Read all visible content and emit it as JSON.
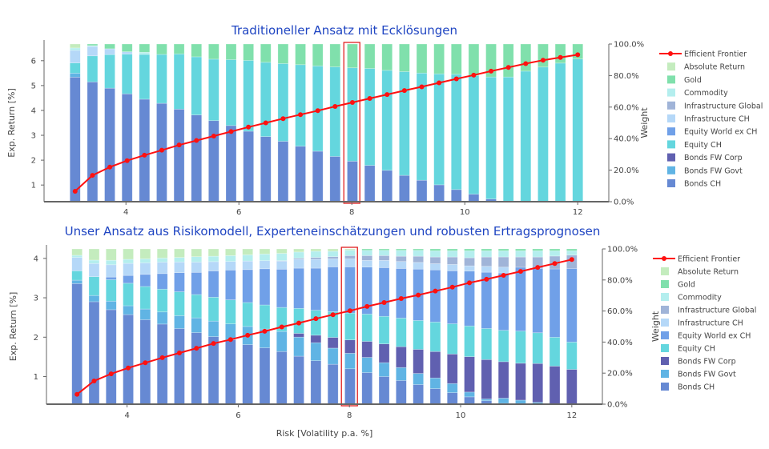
{
  "series_names": [
    "Bonds CH",
    "Bonds FW Govt",
    "Bonds FW Corp",
    "Equity CH",
    "Equity World ex CH",
    "Infrastructure CH",
    "Infrastructure Global",
    "Commodity",
    "Gold",
    "Absolute Return"
  ],
  "colors": {
    "Bonds CH": "#6689d3",
    "Bonds FW Govt": "#60b4e4",
    "Bonds FW Corp": "#6060b0",
    "Equity CH": "#64d6de",
    "Equity World ex CH": "#70a0e8",
    "Infrastructure CH": "#b5d8f8",
    "Infrastructure Global": "#a0b4d8",
    "Commodity": "#b4eeee",
    "Gold": "#80e0ac",
    "Absolute Return": "#c4ecbe",
    "frontier": "#ff1010",
    "highlight": "#e02020",
    "title": "#1f45c2"
  },
  "legend_line_label": "Efficient Frontier",
  "chart_data": [
    {
      "type": "bar",
      "stacked": true,
      "title": "Traditioneller Ansatz mit Ecklösungen",
      "xlabel": "",
      "ylabel_left": "Exp. Return [%]",
      "ylabel_right": "Weight",
      "xlim": [
        2.55,
        12.55
      ],
      "ylim_left": [
        0.33,
        6.67
      ],
      "ylim_right": [
        0,
        100
      ],
      "xticks": [
        4,
        6,
        8,
        10,
        12
      ],
      "yticks_left": [
        1,
        2,
        3,
        4,
        5,
        6
      ],
      "yticks_right": [
        "0.0%",
        "20.0%",
        "40.0%",
        "60.0%",
        "80.0%",
        "100.0%"
      ],
      "highlight_x": 8,
      "legend": "right",
      "x_start": 3.1,
      "x_end": 12.0,
      "n": 30,
      "frontier_return": [
        0.75,
        1.39,
        1.72,
        1.98,
        2.2,
        2.4,
        2.61,
        2.79,
        2.97,
        3.15,
        3.33,
        3.5,
        3.67,
        3.83,
        3.99,
        4.16,
        4.32,
        4.48,
        4.64,
        4.8,
        4.95,
        5.11,
        5.27,
        5.42,
        5.58,
        5.73,
        5.88,
        6.02,
        6.13,
        6.24
      ],
      "series": [
        {
          "name": "Bonds CH",
          "values": [
            79,
            76,
            72,
            68.4,
            65,
            62.4,
            58.7,
            55,
            51.4,
            48.3,
            44.7,
            41.3,
            38.3,
            35.2,
            32,
            28.7,
            25.7,
            23,
            19.9,
            16.7,
            13.6,
            10.7,
            7.7,
            4.8,
            1.7,
            0,
            0,
            0,
            0,
            0
          ]
        },
        {
          "name": "Bonds FW Govt",
          "values": [
            2.5,
            0,
            0,
            0,
            0,
            0,
            0,
            0,
            0,
            0,
            0,
            0,
            0,
            0,
            0,
            0,
            0,
            0,
            0,
            0,
            0,
            0,
            0,
            0,
            0,
            0,
            0,
            0,
            0,
            0
          ]
        },
        {
          "name": "Bonds FW Corp",
          "values": [
            0,
            0,
            0,
            0,
            0,
            0,
            0,
            0,
            0,
            0,
            0,
            0,
            0,
            0,
            0,
            0,
            0,
            0,
            0,
            0,
            0,
            0,
            0,
            0,
            0,
            0,
            0,
            0,
            0,
            0
          ]
        },
        {
          "name": "Equity CH",
          "values": [
            6.5,
            16.5,
            21.3,
            25.2,
            28.4,
            31,
            35,
            36.9,
            39,
            41.8,
            44.9,
            47.1,
            49.3,
            51.7,
            54.1,
            56.8,
            59.2,
            61.5,
            63.4,
            65.8,
            68,
            70.4,
            73.1,
            75.2,
            77.4,
            79.1,
            82.8,
            85.4,
            87.9,
            90.5
          ]
        },
        {
          "name": "Equity World ex CH",
          "values": [
            0,
            0,
            0,
            0,
            0,
            0,
            0,
            0,
            0,
            0,
            0,
            0,
            0,
            0,
            0,
            0,
            0,
            0,
            0,
            0,
            0,
            0,
            0,
            0,
            0,
            0,
            0,
            0,
            0,
            0
          ]
        },
        {
          "name": "Infrastructure CH",
          "values": [
            8,
            6,
            3.7,
            1.5,
            0,
            0,
            0,
            0,
            0,
            0,
            0,
            0,
            0,
            0,
            0,
            0,
            0,
            0,
            0,
            0,
            0,
            0,
            0,
            0,
            0,
            0,
            0,
            0,
            0,
            0
          ]
        },
        {
          "name": "Infrastructure Global",
          "values": [
            0,
            0,
            0,
            0,
            0,
            0,
            0,
            0,
            0,
            0,
            0,
            0,
            0,
            0,
            0,
            0,
            0,
            0,
            0,
            0,
            0,
            0,
            0,
            0,
            0,
            0,
            0,
            0,
            0,
            0
          ]
        },
        {
          "name": "Commodity",
          "values": [
            1.5,
            0.5,
            0,
            0,
            1.4,
            0,
            0,
            0,
            0,
            0,
            0,
            0,
            0,
            0,
            0,
            0,
            0,
            0,
            0,
            0,
            0,
            0,
            0,
            0,
            0,
            0,
            0,
            0,
            0,
            0
          ]
        },
        {
          "name": "Gold",
          "values": [
            0,
            1,
            3,
            4.9,
            5.2,
            6.6,
            6.3,
            8.1,
            9.6,
            9.9,
            10.4,
            11.6,
            12.4,
            13.1,
            13.9,
            14.5,
            15.1,
            15.5,
            16.7,
            17.5,
            18.4,
            18.9,
            19.2,
            20,
            20.9,
            20.9,
            17.2,
            14.6,
            12.1,
            9.5
          ]
        },
        {
          "name": "Absolute Return",
          "values": [
            2.5,
            0,
            0,
            0,
            0,
            0,
            0,
            0,
            0,
            0,
            0,
            0,
            0,
            0,
            0,
            0,
            0,
            0,
            0,
            0,
            0,
            0,
            0,
            0,
            0,
            0,
            0,
            0,
            0,
            0
          ]
        }
      ]
    },
    {
      "type": "bar",
      "stacked": true,
      "title": "Unser Ansatz aus Risikomodell, Experteneinschätzungen und robusten Ertragsprognosen",
      "xlabel": "Risk [Volatility p.a. %]",
      "ylabel_left": "Exp. Return [%]",
      "ylabel_right": "Weight",
      "xlim": [
        2.55,
        12.55
      ],
      "ylim_left": [
        0.3,
        4.24
      ],
      "ylim_right": [
        0,
        100
      ],
      "xticks": [
        4,
        6,
        8,
        10,
        12
      ],
      "yticks_left": [
        1,
        2,
        3,
        4
      ],
      "yticks_right": [
        "0.0%",
        "20.0%",
        "40.0%",
        "60.0%",
        "80.0%",
        "100.0%"
      ],
      "highlight_x": 8,
      "legend": "right",
      "x_start": 3.1,
      "x_end": 12.0,
      "n": 30,
      "frontier_return": [
        0.55,
        0.89,
        1.07,
        1.22,
        1.35,
        1.48,
        1.6,
        1.72,
        1.84,
        1.94,
        2.05,
        2.15,
        2.26,
        2.36,
        2.47,
        2.57,
        2.67,
        2.78,
        2.88,
        2.98,
        3.07,
        3.17,
        3.27,
        3.38,
        3.47,
        3.57,
        3.67,
        3.77,
        3.87,
        3.97
      ],
      "series": [
        {
          "name": "Bonds CH",
          "values": [
            77.5,
            66,
            60.8,
            57.7,
            54.4,
            51.6,
            48.7,
            46.1,
            43.5,
            41.5,
            38.3,
            36.3,
            34,
            30.9,
            28,
            25.7,
            22.8,
            20.3,
            17.8,
            15.2,
            12.6,
            10,
            7.4,
            4.7,
            2.2,
            0.5,
            0,
            0,
            0,
            0
          ]
        },
        {
          "name": "Bonds FW Govt",
          "values": [
            2.2,
            4,
            5.5,
            5.7,
            6.9,
            7.8,
            8.3,
            9.5,
            10,
            10.2,
            11.7,
            12.1,
            13,
            12.3,
            11.6,
            10.4,
            10,
            9.8,
            9,
            8.4,
            7.2,
            6.9,
            5.9,
            3.1,
            1.2,
            3.4,
            2.6,
            1.2,
            0,
            0
          ]
        },
        {
          "name": "Bonds FW Corp",
          "values": [
            0,
            0,
            0,
            0,
            0,
            0,
            0,
            0,
            0,
            0,
            0,
            0,
            0,
            2.4,
            4.8,
            6.9,
            8.6,
            10.3,
            12.1,
            13.4,
            15.5,
            17,
            19,
            22.8,
            25.3,
            23.6,
            23.8,
            25,
            24.5,
            22.4
          ]
        },
        {
          "name": "Equity CH",
          "values": [
            6,
            12.1,
            13.8,
            14.5,
            14.5,
            14.7,
            15.4,
            15,
            15.4,
            15.5,
            15.4,
            15.5,
            15.5,
            16.1,
            16.1,
            16.6,
            17.3,
            17.6,
            17.8,
            18.4,
            18.6,
            19,
            19.5,
            19.8,
            20,
            20.3,
            20.7,
            19.8,
            18.6,
            17.6
          ]
        },
        {
          "name": "Equity World ex CH",
          "values": [
            0,
            0,
            1.7,
            5,
            7.8,
            10,
            12.3,
            14.3,
            16.9,
            19.2,
            21.2,
            23.3,
            24.7,
            25.9,
            27.1,
            28.8,
            29.7,
            30.2,
            31.4,
            31.9,
            33.1,
            33.6,
            34.1,
            35.3,
            36.2,
            37.1,
            41.2,
            41.4,
            44,
            47.4
          ]
        },
        {
          "name": "Infrastructure CH",
          "values": [
            8.6,
            8.5,
            7.9,
            7.8,
            7.4,
            7.4,
            6.9,
            6.6,
            6,
            5.5,
            5.5,
            5.2,
            5.2,
            5.7,
            5.7,
            5.2,
            5.2,
            4.3,
            4.7,
            4.5,
            4.3,
            4,
            4.1,
            3.4,
            3.8,
            3.8,
            0,
            0,
            0,
            0
          ]
        },
        {
          "name": "Infrastructure Global",
          "values": [
            0,
            0,
            0,
            0,
            0,
            0,
            0,
            0,
            0,
            0,
            0,
            0,
            0.3,
            0.7,
            1.2,
            1.4,
            2.1,
            3.1,
            3.1,
            3.4,
            4,
            4.3,
            4.8,
            5.2,
            6,
            6.6,
            6.6,
            7.4,
            8.3,
            8.6
          ]
        },
        {
          "name": "Commodity",
          "values": [
            1.4,
            2.2,
            2.9,
            2.6,
            2.6,
            2.6,
            2.9,
            3.5,
            3.5,
            3.8,
            4,
            4.3,
            4.7,
            4,
            4,
            3.5,
            3.5,
            3.4,
            3.4,
            3.8,
            3.8,
            4,
            4,
            4.5,
            4,
            4,
            4,
            4,
            3.4,
            2.8
          ]
        },
        {
          "name": "Gold",
          "values": [
            0,
            0,
            0,
            0,
            0,
            0,
            0,
            0,
            0,
            0,
            0,
            0,
            0,
            0,
            0,
            0,
            0,
            0.9,
            0.9,
            0.9,
            0.9,
            1.2,
            1.2,
            1.2,
            1.2,
            1.2,
            1.2,
            1.2,
            1.2,
            1.2
          ]
        },
        {
          "name": "Absolute Return",
          "values": [
            4.1,
            7.2,
            7.3,
            6.7,
            6.4,
            5.9,
            5.5,
            5,
            4.7,
            4.3,
            3.8,
            3.3,
            2.9,
            2,
            1.5,
            1.5,
            0.8,
            0,
            0,
            0,
            0,
            0,
            0,
            0,
            0,
            0,
            0,
            0,
            0,
            0
          ]
        }
      ]
    }
  ]
}
